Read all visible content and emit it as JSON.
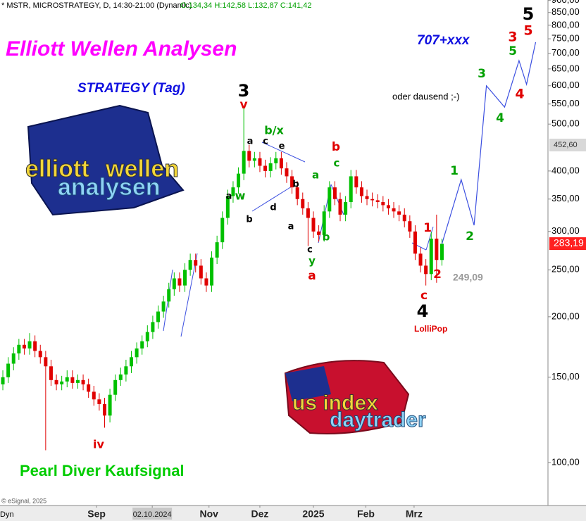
{
  "chart_data": {
    "type": "candlestick",
    "header": "* MSTR, MICROSTRATEGY, D, 14:30-21:00 (Dynamic)",
    "ohlc_info": "O:134,34 H:142,58 L:132,87 C:141,42",
    "title": "Elliott Wellen Analysen",
    "subtitle": "STRATEGY (Tag)",
    "target": "707+xxx",
    "comment": "oder dausend ;-)",
    "signal": "Pearl Diver Kaufsignal",
    "lollipop": "LolliPop",
    "low_label": "249,09",
    "copyright": "© eSignal, 2025",
    "corner": "Dyn",
    "logo_left": [
      "elliott",
      "wellen",
      "analysen"
    ],
    "logo_right": [
      "us index",
      "daytrader"
    ],
    "up_color": "#00c000",
    "down_color": "#e00000",
    "log_scale": true,
    "ylim": [
      81.5,
      902
    ],
    "yticks": [
      {
        "value": 100,
        "label": "100,00"
      },
      {
        "value": 150,
        "label": "150,00"
      },
      {
        "value": 200,
        "label": "200,00"
      },
      {
        "value": 250,
        "label": "250,00"
      },
      {
        "value": 300,
        "label": "300,00"
      },
      {
        "value": 350,
        "label": "350,00"
      },
      {
        "value": 400,
        "label": "400,00"
      },
      {
        "value": 500,
        "label": "500,00"
      },
      {
        "value": 550,
        "label": "550,00"
      },
      {
        "value": 600,
        "label": "600,00"
      },
      {
        "value": 650,
        "label": "650,00"
      },
      {
        "value": 700,
        "label": "700,00"
      },
      {
        "value": 750,
        "label": "750,00"
      },
      {
        "value": 800,
        "label": "800,00"
      },
      {
        "value": 850,
        "label": "850,00"
      },
      {
        "value": 900,
        "label": "900,00"
      }
    ],
    "xlim": [
      -0.53,
      101.8
    ],
    "xticks": [
      {
        "value": 17.5,
        "label": "Sep"
      },
      {
        "value": 27.9,
        "label": "02.10.2024"
      },
      {
        "value": 38.5,
        "label": "Nov"
      },
      {
        "value": 48,
        "label": "Dez"
      },
      {
        "value": 58,
        "label": "2025"
      },
      {
        "value": 67.8,
        "label": "Feb"
      },
      {
        "value": 76.8,
        "label": "Mrz"
      }
    ],
    "last_price": {
      "value": 283.19,
      "label": "283,19"
    },
    "marker_price": {
      "value": 452.6,
      "label": "452,60"
    },
    "ohlc": [
      [
        145,
        155,
        141,
        150
      ],
      [
        150,
        165,
        146,
        160
      ],
      [
        160,
        173,
        155,
        168
      ],
      [
        168,
        180,
        163,
        175
      ],
      [
        175,
        180,
        167,
        172
      ],
      [
        172,
        185,
        167,
        178
      ],
      [
        178,
        183,
        165,
        170
      ],
      [
        170,
        175,
        160,
        165
      ],
      [
        165,
        170,
        106,
        158
      ],
      [
        158,
        163,
        144,
        148
      ],
      [
        148,
        152,
        141,
        145
      ],
      [
        145,
        151,
        141,
        147
      ],
      [
        147,
        155,
        143,
        150
      ],
      [
        150,
        155,
        142,
        146
      ],
      [
        146,
        152,
        142,
        148
      ],
      [
        148,
        152,
        141,
        145
      ],
      [
        145,
        149,
        136,
        140
      ],
      [
        140,
        144,
        131,
        135
      ],
      [
        135,
        139,
        128,
        132
      ],
      [
        132,
        136,
        118,
        125
      ],
      [
        125,
        142,
        121,
        138
      ],
      [
        138,
        152,
        134,
        148
      ],
      [
        148,
        157,
        144,
        152
      ],
      [
        152,
        163,
        147,
        158
      ],
      [
        158,
        170,
        153,
        165
      ],
      [
        165,
        177,
        160,
        172
      ],
      [
        172,
        183,
        167,
        178
      ],
      [
        178,
        192,
        173,
        186
      ],
      [
        186,
        201,
        180,
        195
      ],
      [
        195,
        211,
        189,
        205
      ],
      [
        205,
        221,
        199,
        215
      ],
      [
        215,
        235,
        209,
        228
      ],
      [
        228,
        247,
        221,
        240
      ],
      [
        240,
        247,
        225,
        232
      ],
      [
        232,
        258,
        225,
        250
      ],
      [
        250,
        270,
        243,
        262
      ],
      [
        262,
        270,
        247,
        255
      ],
      [
        255,
        263,
        233,
        240
      ],
      [
        240,
        247,
        225,
        232
      ],
      [
        232,
        273,
        225,
        265
      ],
      [
        265,
        294,
        257,
        285
      ],
      [
        285,
        330,
        276,
        320
      ],
      [
        320,
        366,
        310,
        355
      ],
      [
        355,
        381,
        344,
        370
      ],
      [
        370,
        407,
        359,
        395
      ],
      [
        395,
        540,
        383,
        440
      ],
      [
        440,
        453,
        407,
        420
      ],
      [
        420,
        438,
        407,
        425
      ],
      [
        425,
        438,
        398,
        410
      ],
      [
        410,
        422,
        388,
        400
      ],
      [
        400,
        427,
        388,
        415
      ],
      [
        415,
        438,
        403,
        425
      ],
      [
        425,
        438,
        393,
        405
      ],
      [
        405,
        417,
        378,
        390
      ],
      [
        390,
        402,
        359,
        370
      ],
      [
        370,
        381,
        340,
        350
      ],
      [
        350,
        361,
        325,
        335
      ],
      [
        335,
        345,
        280,
        320
      ],
      [
        320,
        330,
        291,
        300
      ],
      [
        300,
        309,
        286,
        295
      ],
      [
        295,
        340,
        286,
        330
      ],
      [
        330,
        381,
        320,
        370
      ],
      [
        370,
        381,
        340,
        350
      ],
      [
        350,
        361,
        315,
        325
      ],
      [
        325,
        355,
        315,
        345
      ],
      [
        345,
        402,
        335,
        390
      ],
      [
        390,
        402,
        359,
        370
      ],
      [
        370,
        381,
        344,
        355
      ],
      [
        355,
        366,
        340,
        350
      ],
      [
        350,
        361,
        338,
        348
      ],
      [
        348,
        358,
        335,
        345
      ],
      [
        345,
        355,
        330,
        340
      ],
      [
        340,
        350,
        325,
        335
      ],
      [
        335,
        345,
        320,
        330
      ],
      [
        330,
        340,
        315,
        325
      ],
      [
        325,
        335,
        306,
        315
      ],
      [
        315,
        324,
        291,
        300
      ],
      [
        300,
        309,
        262,
        270
      ],
      [
        270,
        278,
        247,
        255
      ],
      [
        255,
        263,
        232,
        245
      ],
      [
        245,
        299,
        238,
        290
      ],
      [
        290,
        325,
        235,
        262
      ],
      [
        262,
        290,
        255,
        283
      ]
    ],
    "projection": {
      "x": [
        82,
        85.6,
        88,
        90.3,
        93.7,
        96.4,
        97.8,
        99.5
      ],
      "values": [
        283,
        384,
        309,
        600,
        542,
        676,
        604,
        738
      ],
      "color": "#3b4fe0"
    },
    "wave_labels": [
      {
        "text": "3",
        "color": "#000000"
      },
      {
        "text": "v",
        "color": "#e00000"
      },
      {
        "text": "b/x",
        "color": "#00a000"
      },
      {
        "text": "a",
        "color": "#000000"
      },
      {
        "text": "c",
        "color": "#000000"
      },
      {
        "text": "e",
        "color": "#000000"
      },
      {
        "text": "b",
        "color": "#000000"
      },
      {
        "text": "d",
        "color": "#000000"
      },
      {
        "text": "b",
        "color": "#000000"
      },
      {
        "text": "a",
        "color": "#000000"
      },
      {
        "text": "a",
        "color": "#000000"
      },
      {
        "text": "w",
        "color": "#00a000"
      },
      {
        "text": "b",
        "color": "#e00000"
      },
      {
        "text": "c",
        "color": "#00a000"
      },
      {
        "text": "a",
        "color": "#00a000"
      },
      {
        "text": "b",
        "color": "#00a000"
      },
      {
        "text": "c",
        "color": "#000000"
      },
      {
        "text": "y",
        "color": "#00a000"
      },
      {
        "text": "a",
        "color": "#e00000"
      },
      {
        "text": "1",
        "color": "#e00000"
      },
      {
        "text": "2",
        "color": "#e00000"
      },
      {
        "text": "c",
        "color": "#e00000"
      },
      {
        "text": "4",
        "color": "#000000"
      },
      {
        "text": "iv",
        "color": "#e00000"
      },
      {
        "text": "1",
        "color": "#00a000"
      },
      {
        "text": "2",
        "color": "#00a000"
      },
      {
        "text": "3",
        "color": "#00a000"
      },
      {
        "text": "4",
        "color": "#00a000"
      },
      {
        "text": "5",
        "color": "#00a000"
      },
      {
        "text": "3",
        "color": "#e00000"
      },
      {
        "text": "4",
        "color": "#e00000"
      },
      {
        "text": "5",
        "color": "#e00000"
      },
      {
        "text": "5",
        "color": "#000000"
      }
    ]
  }
}
